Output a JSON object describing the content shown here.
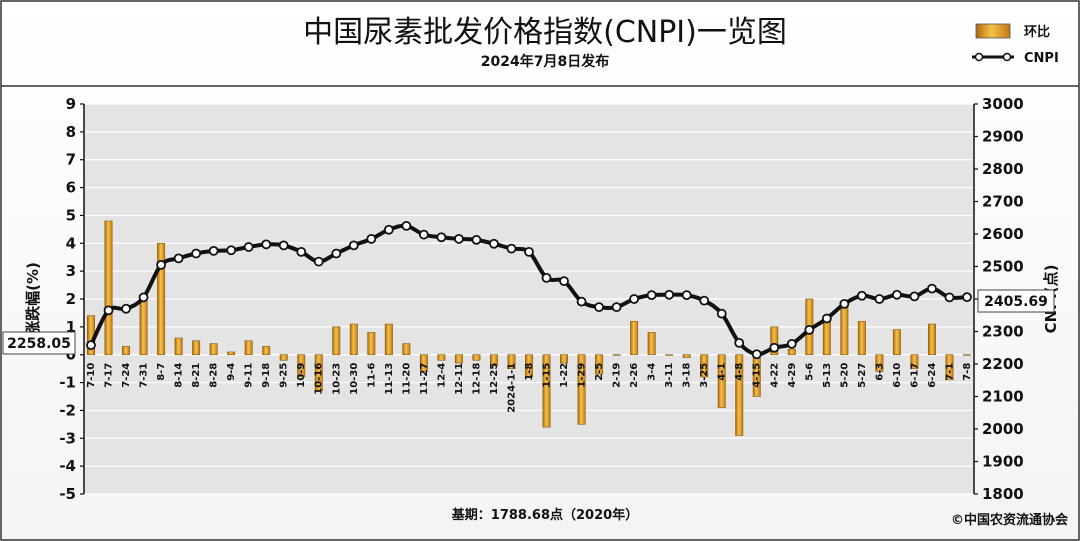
{
  "chart_data": {
    "type": "bar+line",
    "title": "中国尿素批发价格指数(CNPI)一览图",
    "subtitle": "2024年7月8日发布",
    "legend": [
      "环比",
      "CNPI"
    ],
    "ylabel_left": "涨跌幅(%)",
    "ylabel_right": "CNPI(点)",
    "ylim_left": [
      -5,
      9
    ],
    "ylim_right": [
      1800,
      3000
    ],
    "yticks_left": [
      "9",
      "8",
      "7",
      "6",
      "5",
      "4",
      "3",
      "2",
      "1",
      "0",
      "-1",
      "-2",
      "-3",
      "-4",
      "-5"
    ],
    "yticks_right": [
      "3000",
      "2900",
      "2800",
      "2700",
      "2600",
      "2500",
      "2400",
      "2300",
      "2200",
      "2100",
      "2000",
      "1900",
      "1800"
    ],
    "categories": [
      "7-10",
      "7-17",
      "7-24",
      "7-31",
      "8-7",
      "8-14",
      "8-21",
      "8-28",
      "9-4",
      "9-11",
      "9-18",
      "9-25",
      "10-9",
      "10-16",
      "10-23",
      "10-30",
      "11-6",
      "11-13",
      "11-20",
      "11-27",
      "12-4",
      "12-11",
      "12-18",
      "12-25",
      "2024-1-1",
      "1-8",
      "1-15",
      "1-22",
      "1-29",
      "2-5",
      "2-19",
      "2-26",
      "3-4",
      "3-11",
      "3-18",
      "3-25",
      "4-1",
      "4-8",
      "4-15",
      "4-22",
      "4-29",
      "5-6",
      "5-13",
      "5-20",
      "5-27",
      "6-3",
      "6-10",
      "6-17",
      "6-24",
      "7-1",
      "7-8"
    ],
    "series": [
      {
        "name": "环比",
        "kind": "bar",
        "values": [
          1.4,
          4.8,
          0.3,
          1.9,
          4.0,
          0.6,
          0.5,
          0.4,
          0.1,
          0.5,
          0.3,
          -0.2,
          -0.8,
          -1.3,
          1.0,
          1.1,
          0.8,
          1.1,
          0.4,
          -0.6,
          -0.2,
          -0.3,
          -0.2,
          -0.4,
          -0.5,
          -0.8,
          -2.6,
          -0.3,
          -2.5,
          -0.7,
          0.0,
          1.2,
          0.8,
          0.0,
          -0.1,
          -0.8,
          -1.9,
          -2.9,
          -1.5,
          1.0,
          0.2,
          2.0,
          1.2,
          1.7,
          1.2,
          -0.6,
          0.9,
          -0.5,
          1.1,
          -0.9,
          0.0
        ]
      },
      {
        "name": "CNPI",
        "kind": "line",
        "values": [
          2258.05,
          2365,
          2370,
          2405,
          2505,
          2525,
          2540,
          2548,
          2550,
          2560,
          2568,
          2565,
          2545,
          2515,
          2540,
          2565,
          2585,
          2613,
          2625,
          2598,
          2590,
          2585,
          2582,
          2570,
          2555,
          2545,
          2465,
          2455,
          2392,
          2375,
          2375,
          2400,
          2412,
          2413,
          2412,
          2395,
          2355,
          2265,
          2230,
          2250,
          2262,
          2305,
          2340,
          2385,
          2410,
          2400,
          2413,
          2408,
          2432,
          2405,
          2405.69
        ]
      }
    ],
    "annotations": [
      "2258.05",
      "2405.69"
    ],
    "footer_base": "基期：1788.68点（2020年）",
    "footer_source": "©中国农资流通协会"
  }
}
